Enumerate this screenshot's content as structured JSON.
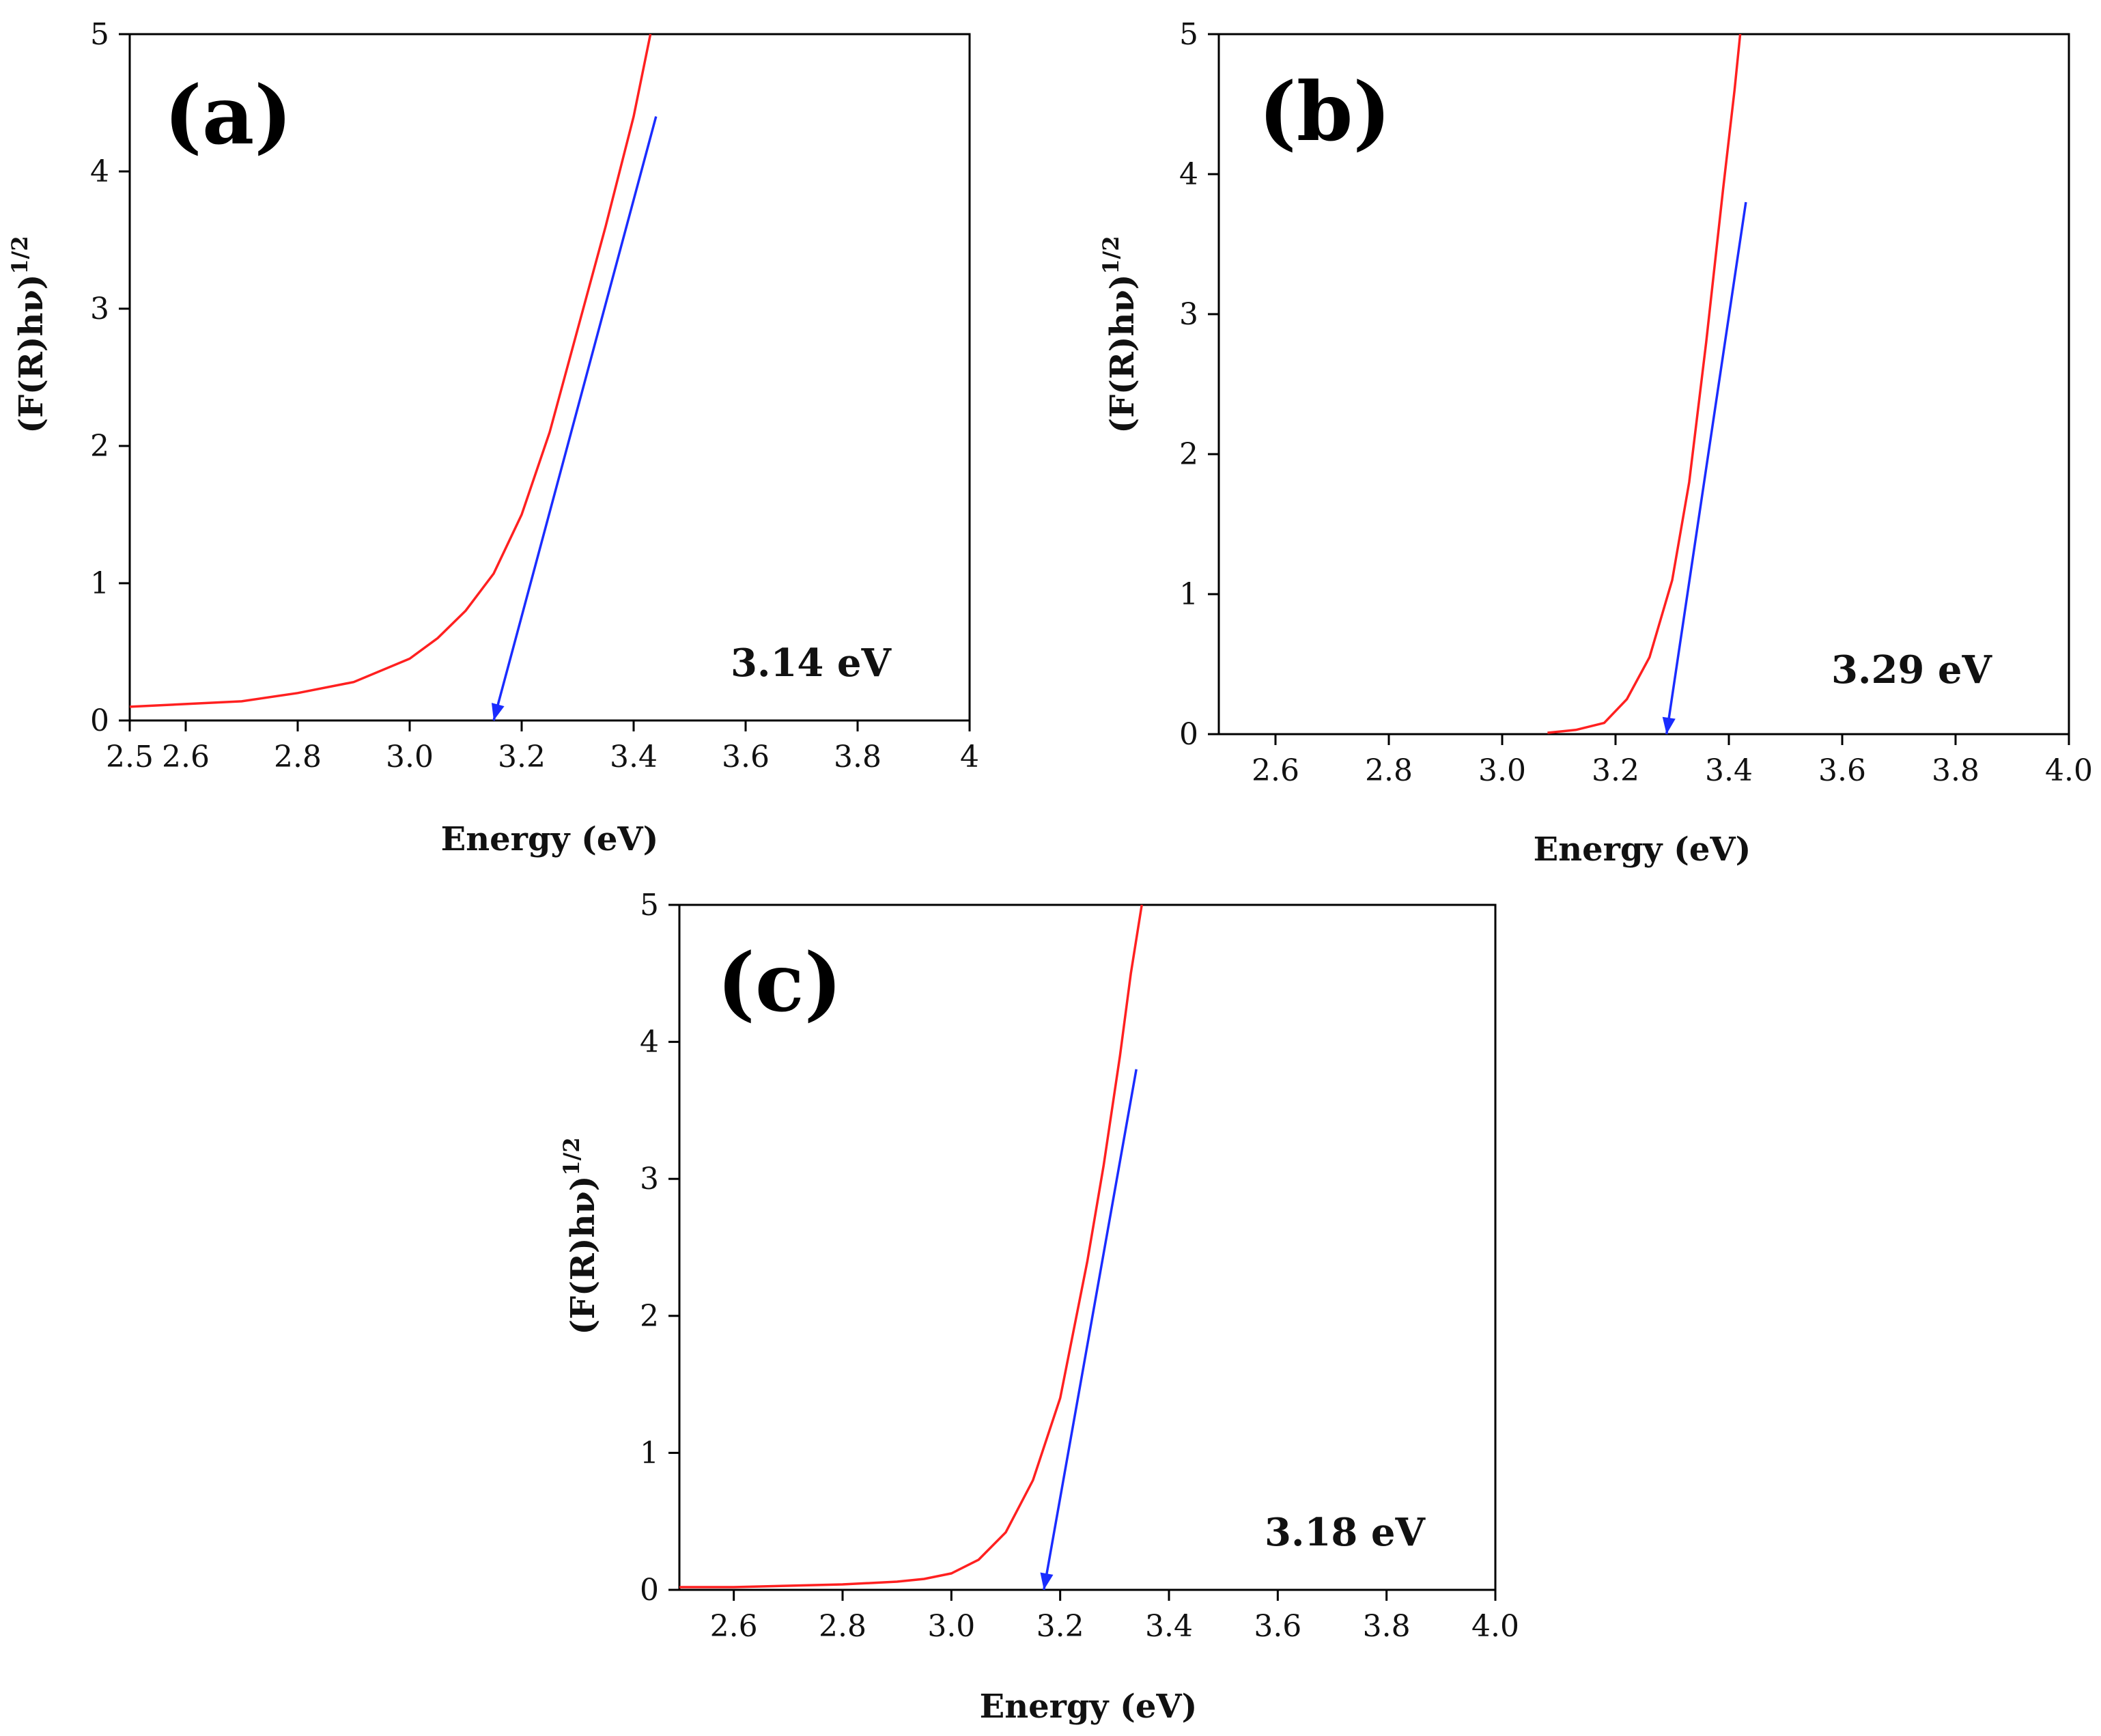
{
  "chart_data": [
    {
      "type": "line",
      "panel": "(a)",
      "annotation": "3.14 eV",
      "xlabel": "Energy (eV)",
      "ylabel_main": "(F(R)hν)",
      "ylabel_sup": "1/2",
      "xlim": [
        2.5,
        4.0
      ],
      "ylim": [
        0,
        5
      ],
      "xticks": [
        2.5,
        2.6,
        2.8,
        3.0,
        3.2,
        3.4,
        3.6,
        3.8,
        4.0
      ],
      "xtick_labels": [
        "2.5",
        "2.6",
        "2.8",
        "3.0",
        "3.2",
        "3.4",
        "3.6",
        "3.8",
        "4"
      ],
      "yticks": [
        0,
        1,
        2,
        3,
        4,
        5
      ],
      "ytick_labels": [
        "0",
        "1",
        "2",
        "3",
        "4",
        "5"
      ],
      "series": [
        {
          "name": "spectrum",
          "color": "#ff2020",
          "x": [
            2.5,
            2.6,
            2.7,
            2.8,
            2.9,
            3.0,
            3.05,
            3.1,
            3.15,
            3.2,
            3.25,
            3.3,
            3.35,
            3.4,
            3.43
          ],
          "y": [
            0.1,
            0.12,
            0.14,
            0.2,
            0.28,
            0.45,
            0.6,
            0.8,
            1.07,
            1.5,
            2.1,
            2.85,
            3.6,
            4.4,
            5.0
          ]
        },
        {
          "name": "tangent",
          "color": "#1a2cff",
          "x": [
            3.44,
            3.15
          ],
          "y": [
            4.4,
            0
          ]
        }
      ]
    },
    {
      "type": "line",
      "panel": "(b)",
      "annotation": "3.29 eV",
      "xlabel": "Energy (eV)",
      "ylabel_main": "(F(R)hν)",
      "ylabel_sup": "1/2",
      "xlim": [
        2.5,
        4.0
      ],
      "ylim": [
        0,
        5
      ],
      "xticks": [
        2.6,
        2.8,
        3.0,
        3.2,
        3.4,
        3.6,
        3.8,
        4.0
      ],
      "xtick_labels": [
        "2.6",
        "2.8",
        "3.0",
        "3.2",
        "3.4",
        "3.6",
        "3.8",
        "4.0"
      ],
      "yticks": [
        0,
        1,
        2,
        3,
        4,
        5
      ],
      "ytick_labels": [
        "0",
        "1",
        "2",
        "3",
        "4",
        "5"
      ],
      "series": [
        {
          "name": "spectrum",
          "color": "#ff2020",
          "x": [
            3.08,
            3.13,
            3.18,
            3.22,
            3.26,
            3.3,
            3.33,
            3.36,
            3.39,
            3.41,
            3.42
          ],
          "y": [
            0.01,
            0.03,
            0.08,
            0.25,
            0.55,
            1.1,
            1.8,
            2.8,
            3.9,
            4.6,
            5.0
          ]
        },
        {
          "name": "tangent",
          "color": "#1a2cff",
          "x": [
            3.43,
            3.29
          ],
          "y": [
            3.8,
            0
          ]
        }
      ]
    },
    {
      "type": "line",
      "panel": "(c)",
      "annotation": "3.18 eV",
      "xlabel": "Energy (eV)",
      "ylabel_main": "(F(R)hν)",
      "ylabel_sup": "1/2",
      "xlim": [
        2.5,
        4.0
      ],
      "ylim": [
        0,
        5
      ],
      "xticks": [
        2.6,
        2.8,
        3.0,
        3.2,
        3.4,
        3.6,
        3.8,
        4.0
      ],
      "xtick_labels": [
        "2.6",
        "2.8",
        "3.0",
        "3.2",
        "3.4",
        "3.6",
        "3.8",
        "4.0"
      ],
      "yticks": [
        0,
        1,
        2,
        3,
        4,
        5
      ],
      "ytick_labels": [
        "0",
        "1",
        "2",
        "3",
        "4",
        "5"
      ],
      "series": [
        {
          "name": "spectrum",
          "color": "#ff2020",
          "x": [
            2.5,
            2.6,
            2.7,
            2.8,
            2.9,
            2.95,
            3.0,
            3.05,
            3.1,
            3.15,
            3.2,
            3.25,
            3.28,
            3.31,
            3.33,
            3.35
          ],
          "y": [
            0.02,
            0.02,
            0.03,
            0.04,
            0.06,
            0.08,
            0.12,
            0.22,
            0.42,
            0.8,
            1.4,
            2.4,
            3.1,
            3.9,
            4.5,
            5.0
          ]
        },
        {
          "name": "tangent",
          "color": "#1a2cff",
          "x": [
            3.34,
            3.17
          ],
          "y": [
            3.8,
            0
          ]
        }
      ]
    }
  ]
}
